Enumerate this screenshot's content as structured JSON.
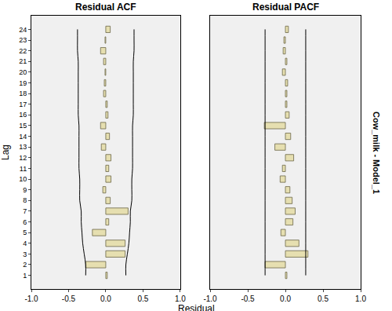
{
  "chart_data": {
    "type": "bar",
    "orientation": "horizontal",
    "y_label": "Lag",
    "x_label": "Residual",
    "side_label": "Cow_milk - Model_1",
    "color": "#e6dfb0",
    "categories": [
      "1",
      "2",
      "3",
      "4",
      "5",
      "6",
      "7",
      "8",
      "9",
      "10",
      "11",
      "12",
      "13",
      "14",
      "15",
      "16",
      "17",
      "18",
      "19",
      "20",
      "21",
      "22",
      "23",
      "24"
    ],
    "xlim": [
      -1,
      1
    ],
    "xticks": [
      {
        "value": -1,
        "label": "-1.0"
      },
      {
        "value": -0.5,
        "label": "-0.5"
      },
      {
        "value": 0,
        "label": "0.0"
      },
      {
        "value": 0.5,
        "label": "0.5"
      },
      {
        "value": 1,
        "label": "1.0"
      }
    ],
    "grid": false,
    "panels": [
      {
        "title": "Residual ACF",
        "values": [
          0.02,
          -0.27,
          0.26,
          0.26,
          -0.18,
          0.04,
          0.3,
          0.06,
          -0.04,
          0.07,
          0.04,
          0.07,
          -0.06,
          0.05,
          -0.07,
          0.03,
          0.02,
          -0.03,
          -0.02,
          -0.01,
          -0.03,
          -0.07,
          -0.01,
          0.06
        ],
        "upper_limit": [
          0.27,
          0.27,
          0.29,
          0.31,
          0.32,
          0.33,
          0.33,
          0.35,
          0.35,
          0.35,
          0.36,
          0.36,
          0.36,
          0.36,
          0.36,
          0.37,
          0.37,
          0.37,
          0.37,
          0.37,
          0.37,
          0.38,
          0.38,
          0.38
        ],
        "lower_limit": [
          -0.27,
          -0.27,
          -0.29,
          -0.31,
          -0.32,
          -0.33,
          -0.33,
          -0.35,
          -0.35,
          -0.35,
          -0.36,
          -0.36,
          -0.36,
          -0.36,
          -0.36,
          -0.37,
          -0.37,
          -0.37,
          -0.37,
          -0.37,
          -0.37,
          -0.38,
          -0.38,
          -0.38
        ]
      },
      {
        "title": "Residual PACF",
        "values": [
          0.02,
          -0.27,
          0.3,
          0.18,
          -0.06,
          0.1,
          0.13,
          0.09,
          0.06,
          -0.07,
          -0.04,
          0.11,
          -0.14,
          0.07,
          -0.28,
          0.05,
          0.02,
          0.02,
          0.03,
          -0.04,
          0.02,
          -0.03,
          -0.02,
          0.04
        ],
        "upper_limit": [
          0.27,
          0.27,
          0.27,
          0.27,
          0.27,
          0.27,
          0.27,
          0.27,
          0.27,
          0.27,
          0.27,
          0.27,
          0.27,
          0.27,
          0.27,
          0.27,
          0.27,
          0.27,
          0.27,
          0.27,
          0.27,
          0.27,
          0.27,
          0.27
        ],
        "lower_limit": [
          -0.27,
          -0.27,
          -0.27,
          -0.27,
          -0.27,
          -0.27,
          -0.27,
          -0.27,
          -0.27,
          -0.27,
          -0.27,
          -0.27,
          -0.27,
          -0.27,
          -0.27,
          -0.27,
          -0.27,
          -0.27,
          -0.27,
          -0.27,
          -0.27,
          -0.27,
          -0.27,
          -0.27
        ]
      }
    ]
  }
}
